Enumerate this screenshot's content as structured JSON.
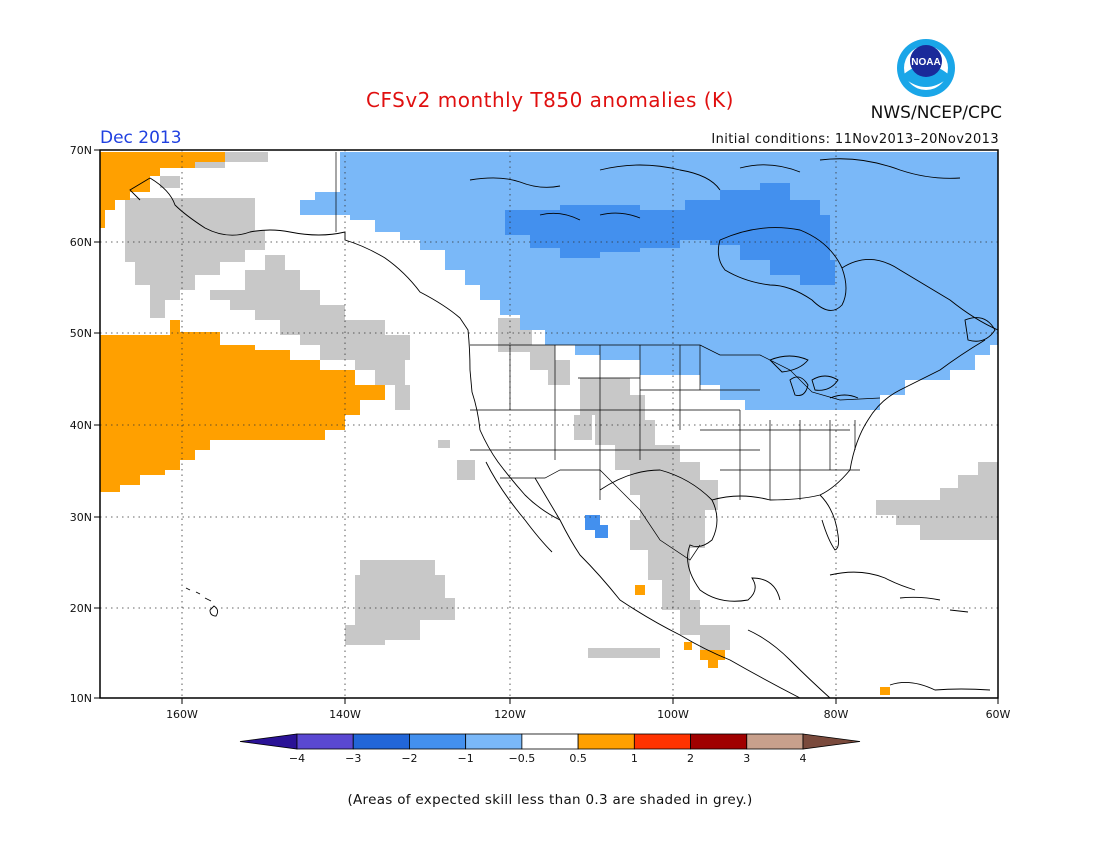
{
  "header": {
    "title": "CFSv2 monthly T850 anomalies (K)",
    "agency": "NWS/NCEP/CPC",
    "logo_text": "NOAA",
    "month": "Dec 2013",
    "initial_conditions": "Initial conditions: 11Nov2013–20Nov2013"
  },
  "map": {
    "lon_labels": [
      "160W",
      "140W",
      "120W",
      "100W",
      "80W",
      "60W"
    ],
    "lat_labels": [
      "70N",
      "60N",
      "50N",
      "40N",
      "30N",
      "20N",
      "10N"
    ],
    "extent": {
      "lon": [
        -172,
        -60
      ],
      "lat": [
        10,
        70
      ]
    },
    "grid": "dotted"
  },
  "colorbar": {
    "labels": [
      "−4",
      "−3",
      "−2",
      "−1",
      "−0.5",
      "0.5",
      "1",
      "2",
      "3",
      "4"
    ],
    "colors": [
      "#2a1296",
      "#5a48d2",
      "#2266d8",
      "#4390ee",
      "#7ab8f8",
      "#ffffff",
      "#ffa000",
      "#ff3300",
      "#a00000",
      "#c8a08c",
      "#7a4a3c"
    ]
  },
  "legend_colors": {
    "warm_0_5_to_1": "#ffa000",
    "cool_minus1_to_minus0_5": "#7ab8f8",
    "cool_minus2_to_minus1": "#4390ee",
    "low_skill_grey": "#c8c8c8"
  },
  "footnote": "(Areas of expected skill less than 0.3 are shaded in grey.)"
}
